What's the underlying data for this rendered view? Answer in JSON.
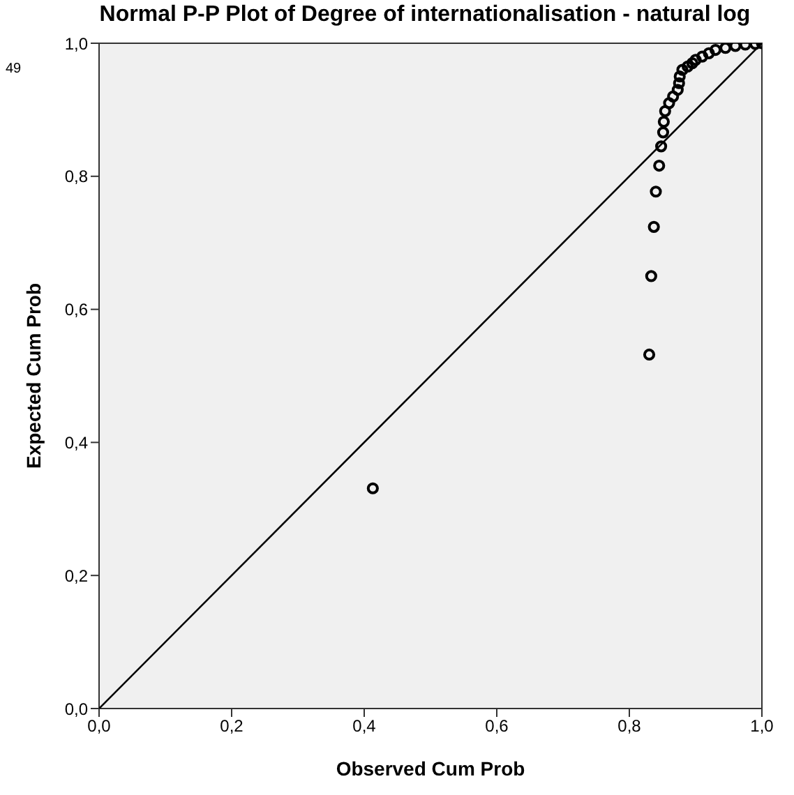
{
  "chart_data": {
    "type": "scatter",
    "title": "Normal P-P Plot of Degree of internationalisation - natural log",
    "xlabel": "Observed Cum Prob",
    "ylabel": "Expected Cum Prob",
    "annotations": [
      "49"
    ],
    "xlim": [
      0,
      1
    ],
    "ylim": [
      0,
      1
    ],
    "xticks": [
      {
        "value": 0,
        "label": "0,0"
      },
      {
        "value": 0.2,
        "label": "0,2"
      },
      {
        "value": 0.4,
        "label": "0,4"
      },
      {
        "value": 0.6,
        "label": "0,6"
      },
      {
        "value": 0.8,
        "label": "0,8"
      },
      {
        "value": 1,
        "label": "1,0"
      }
    ],
    "yticks": [
      {
        "value": 0,
        "label": "0,0"
      },
      {
        "value": 0.2,
        "label": "0,2"
      },
      {
        "value": 0.4,
        "label": "0,4"
      },
      {
        "value": 0.6,
        "label": "0,6"
      },
      {
        "value": 0.8,
        "label": "0,8"
      },
      {
        "value": 1,
        "label": "1,0"
      }
    ],
    "marker": "circle",
    "series": [
      {
        "color": "#000000",
        "x": [
          0.413,
          0.83,
          0.833,
          0.837,
          0.84,
          0.845,
          0.848,
          0.851,
          0.852,
          0.854,
          0.86,
          0.866,
          0.873,
          0.875,
          0.876,
          0.88,
          0.888,
          0.895,
          0.9,
          0.91,
          0.92,
          0.93,
          0.945,
          0.96,
          0.975,
          0.99,
          1.0
        ],
        "values": [
          0.331,
          0.532,
          0.65,
          0.724,
          0.777,
          0.816,
          0.845,
          0.866,
          0.882,
          0.898,
          0.91,
          0.92,
          0.93,
          0.94,
          0.95,
          0.96,
          0.965,
          0.97,
          0.975,
          0.98,
          0.985,
          0.99,
          0.993,
          0.996,
          0.998,
          0.999,
          1.0
        ]
      },
      {
        "type": "line",
        "marker": "none",
        "color": "#000000",
        "x": [
          0,
          1
        ],
        "values": [
          0,
          1
        ]
      }
    ]
  }
}
